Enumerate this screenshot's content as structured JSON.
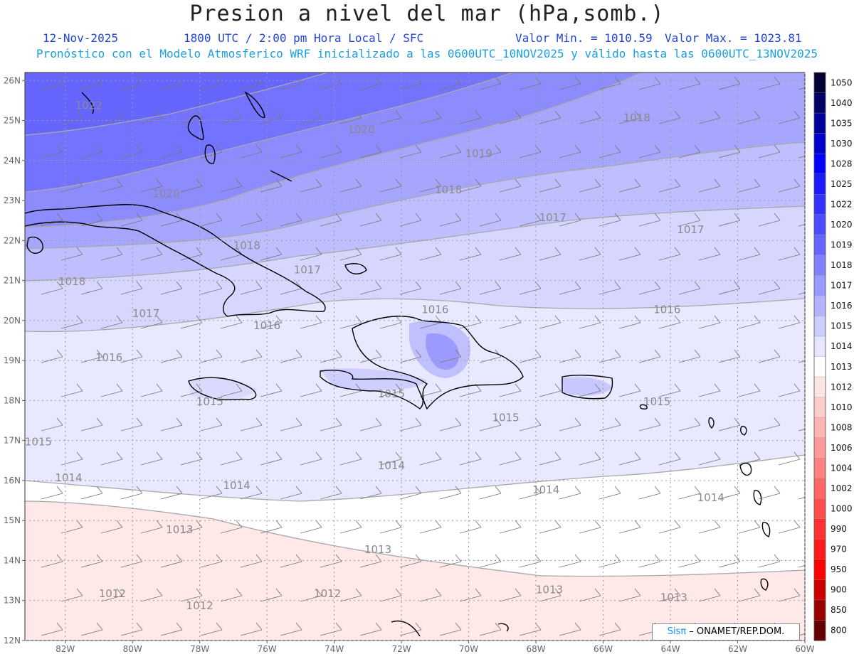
{
  "title": "Presion a nivel del mar (hPa,somb.)",
  "header": {
    "date": "12-Nov-2025",
    "time": "1800 UTC / 2:00 pm Hora Local / SFC",
    "min_label": "Valor Min. = 1010.59",
    "max_label": "Valor Max. = 1023.81",
    "forecast_line": "Pronóstico con el Modelo Atmosferico WRF inicializado a las 0600UTC_10NOV2025 y válido hasta las  0600UTC_13NOV2025"
  },
  "map": {
    "lat_labels": [
      "26N",
      "25N",
      "24N",
      "23N",
      "22N",
      "21N",
      "20N",
      "19N",
      "18N",
      "17N",
      "16N",
      "15N",
      "14N",
      "13N",
      "12N"
    ],
    "lon_labels": [
      "82W",
      "80W",
      "78W",
      "76W",
      "74W",
      "72W",
      "70W",
      "68W",
      "66W",
      "64W",
      "62W",
      "60W"
    ],
    "isobar_labels": [
      {
        "text": "1022",
        "lon": -81.3,
        "lat": 25.3
      },
      {
        "text": "1020",
        "lon": -73.2,
        "lat": 24.7
      },
      {
        "text": "1019",
        "lon": -69.7,
        "lat": 24.1
      },
      {
        "text": "1018",
        "lon": -65.0,
        "lat": 25.0
      },
      {
        "text": "1020",
        "lon": -79.0,
        "lat": 23.1
      },
      {
        "text": "1018",
        "lon": -70.6,
        "lat": 23.2
      },
      {
        "text": "1017",
        "lon": -67.5,
        "lat": 22.5
      },
      {
        "text": "1017",
        "lon": -63.4,
        "lat": 22.2
      },
      {
        "text": "1018",
        "lon": -76.6,
        "lat": 21.8
      },
      {
        "text": "1017",
        "lon": -74.8,
        "lat": 21.2
      },
      {
        "text": "1018",
        "lon": -81.8,
        "lat": 20.9
      },
      {
        "text": "1017",
        "lon": -79.6,
        "lat": 20.1
      },
      {
        "text": "1016",
        "lon": -76.0,
        "lat": 19.8
      },
      {
        "text": "1016",
        "lon": -71.0,
        "lat": 20.2
      },
      {
        "text": "1016",
        "lon": -64.1,
        "lat": 20.2
      },
      {
        "text": "1016",
        "lon": -80.7,
        "lat": 19.0
      },
      {
        "text": "1015",
        "lon": -77.7,
        "lat": 17.9
      },
      {
        "text": "1015",
        "lon": -72.3,
        "lat": 18.1
      },
      {
        "text": "1015",
        "lon": -68.9,
        "lat": 17.5
      },
      {
        "text": "1015",
        "lon": -64.4,
        "lat": 17.9
      },
      {
        "text": "1015",
        "lon": -82.8,
        "lat": 16.9
      },
      {
        "text": "1014",
        "lon": -81.9,
        "lat": 16.0
      },
      {
        "text": "1014",
        "lon": -76.9,
        "lat": 15.8
      },
      {
        "text": "1014",
        "lon": -72.3,
        "lat": 16.3
      },
      {
        "text": "1014",
        "lon": -67.7,
        "lat": 15.7
      },
      {
        "text": "1014",
        "lon": -62.8,
        "lat": 15.5
      },
      {
        "text": "1013",
        "lon": -78.6,
        "lat": 14.7
      },
      {
        "text": "1013",
        "lon": -72.7,
        "lat": 14.2
      },
      {
        "text": "1013",
        "lon": -67.6,
        "lat": 13.2
      },
      {
        "text": "1013",
        "lon": -63.9,
        "lat": 13.0
      },
      {
        "text": "1012",
        "lon": -80.6,
        "lat": 13.1
      },
      {
        "text": "1012",
        "lon": -78.0,
        "lat": 12.8
      },
      {
        "text": "1012",
        "lon": -74.2,
        "lat": 13.1
      }
    ]
  },
  "colorbar": {
    "levels": [
      "1050",
      "1040",
      "1035",
      "1030",
      "1028",
      "1025",
      "1022",
      "1020",
      "1019",
      "1018",
      "1017",
      "1016",
      "1015",
      "1014",
      "1013",
      "1012",
      "1010",
      "1008",
      "1006",
      "1004",
      "1002",
      "1000",
      "990",
      "970",
      "950",
      "900",
      "850",
      "800"
    ],
    "colors": [
      "#000033",
      "#000066",
      "#000099",
      "#0000cc",
      "#0000ff",
      "#1a1aff",
      "#3333ff",
      "#4d4dff",
      "#6666ff",
      "#8080ff",
      "#9999ff",
      "#b3b3ff",
      "#ccccff",
      "#e6e6ff",
      "#ffffff",
      "#ffe6e6",
      "#ffcccc",
      "#ffb3b3",
      "#ff9999",
      "#ff8080",
      "#ff6666",
      "#ff4d4d",
      "#ff3333",
      "#ff1a1a",
      "#ff0000",
      "#cc0000",
      "#990000",
      "#660000"
    ]
  },
  "credit": {
    "sis": "Sis",
    "pi": "π",
    "rest": " – ONAMET/REP.DOM."
  }
}
